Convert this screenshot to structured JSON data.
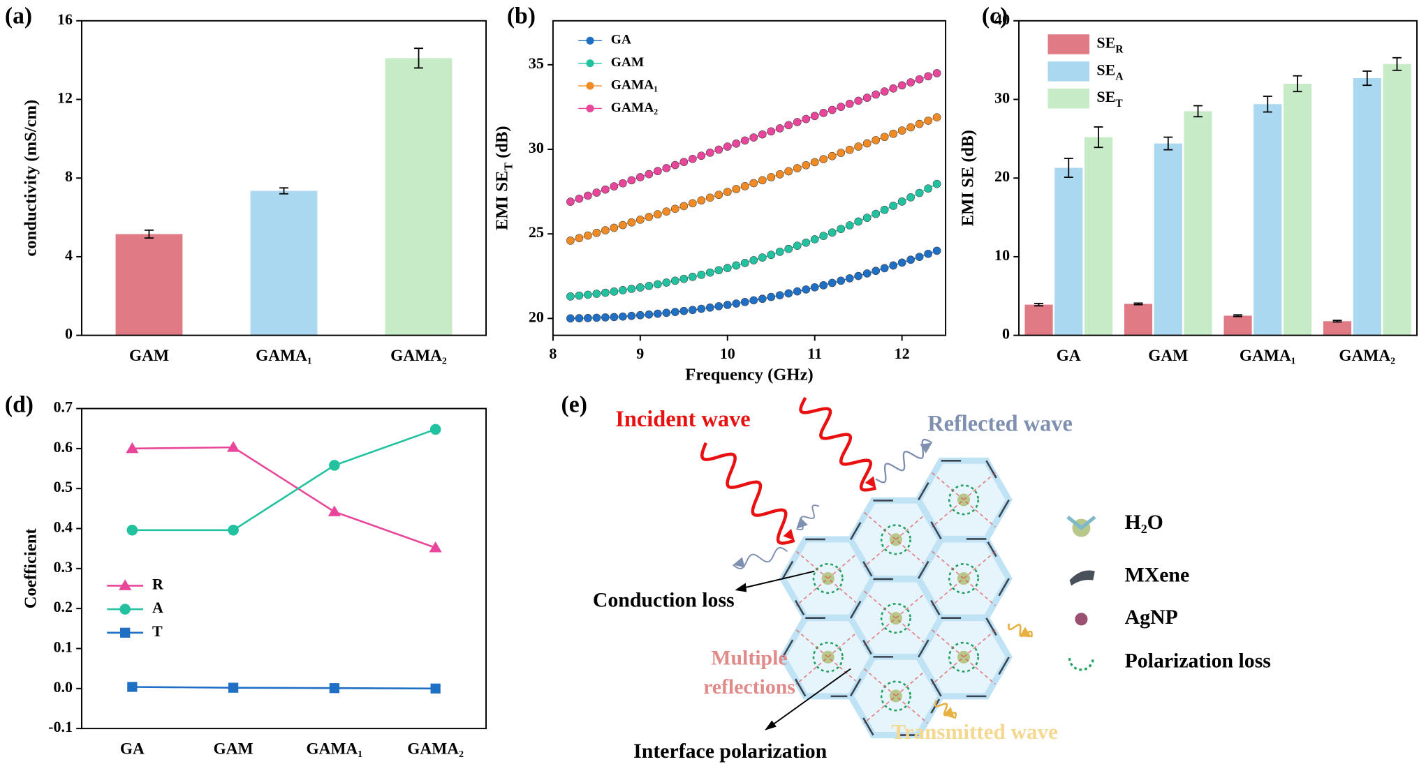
{
  "chart_data": [
    {
      "panel": "(a)",
      "type": "bar",
      "categories": [
        "GAM",
        "GAMA₁",
        "GAMA₂"
      ],
      "values": [
        5.15,
        7.35,
        14.1
      ],
      "errors": [
        0.2,
        0.15,
        0.5
      ],
      "colors": [
        "#e07b85",
        "#aad8f0",
        "#c6ebc6"
      ],
      "ylabel": "conductivity (mS/cm)",
      "ylim": [
        0,
        16
      ],
      "yticks": [
        0,
        4,
        8,
        12,
        16
      ]
    },
    {
      "panel": "(b)",
      "type": "scatter",
      "xlabel": "Frequency (GHz)",
      "ylabel": "EMI SET (dB)",
      "xlim": [
        8,
        12.5
      ],
      "ylim": [
        19,
        37.6
      ],
      "xticks": [
        8,
        9,
        10,
        11,
        12
      ],
      "yticks": [
        20,
        25,
        30,
        35
      ],
      "legend": "upper left",
      "x": [
        8.2,
        8.3,
        8.4,
        8.5,
        8.6,
        8.7,
        8.8,
        8.9,
        9.0,
        9.1,
        9.2,
        9.3,
        9.4,
        9.5,
        9.6,
        9.7,
        9.8,
        9.9,
        10.0,
        10.1,
        10.2,
        10.3,
        10.4,
        10.5,
        10.6,
        10.7,
        10.8,
        10.9,
        11.0,
        11.1,
        11.2,
        11.3,
        11.4,
        11.5,
        11.6,
        11.7,
        11.8,
        11.9,
        12.0,
        12.1,
        12.2,
        12.3,
        12.4
      ],
      "series": [
        {
          "name": "GA",
          "color": "#1f6fc4",
          "values": [
            20.0,
            20.01,
            20.02,
            20.04,
            20.06,
            20.08,
            20.11,
            20.15,
            20.19,
            20.23,
            20.28,
            20.33,
            20.38,
            20.44,
            20.5,
            20.57,
            20.64,
            20.72,
            20.8,
            20.88,
            20.97,
            21.07,
            21.16,
            21.27,
            21.37,
            21.48,
            21.6,
            21.71,
            21.84,
            21.96,
            22.1,
            22.23,
            22.37,
            22.51,
            22.66,
            22.81,
            22.97,
            23.13,
            23.3,
            23.47,
            23.64,
            23.82,
            24.0
          ]
        },
        {
          "name": "GAM",
          "color": "#22c2a0",
          "values": [
            21.3,
            21.35,
            21.4,
            21.46,
            21.52,
            21.59,
            21.67,
            21.75,
            21.83,
            21.92,
            22.02,
            22.12,
            22.23,
            22.34,
            22.46,
            22.58,
            22.71,
            22.85,
            22.98,
            23.13,
            23.28,
            23.44,
            23.6,
            23.76,
            23.94,
            24.11,
            24.3,
            24.48,
            24.68,
            24.88,
            25.08,
            25.29,
            25.5,
            25.73,
            25.95,
            26.18,
            26.42,
            26.66,
            26.91,
            27.16,
            27.42,
            27.68,
            27.95
          ]
        },
        {
          "name": "GAMA₁",
          "color": "#f08a24",
          "values": [
            24.6,
            24.75,
            24.9,
            25.06,
            25.21,
            25.36,
            25.52,
            25.68,
            25.84,
            26.0,
            26.16,
            26.32,
            26.48,
            26.64,
            26.81,
            26.98,
            27.14,
            27.31,
            27.48,
            27.65,
            27.82,
            28.0,
            28.17,
            28.35,
            28.52,
            28.7,
            28.88,
            29.06,
            29.24,
            29.42,
            29.6,
            29.79,
            29.97,
            30.16,
            30.35,
            30.54,
            30.73,
            30.92,
            31.11,
            31.3,
            31.5,
            31.69,
            31.89
          ]
        },
        {
          "name": "GAMA₂",
          "color": "#e8469a",
          "values": [
            26.9,
            27.08,
            27.26,
            27.44,
            27.62,
            27.81,
            27.99,
            28.17,
            28.35,
            28.53,
            28.71,
            28.89,
            29.07,
            29.25,
            29.43,
            29.62,
            29.8,
            29.98,
            30.16,
            30.34,
            30.52,
            30.7,
            30.88,
            31.06,
            31.24,
            31.43,
            31.61,
            31.79,
            31.97,
            32.15,
            32.33,
            32.51,
            32.69,
            32.87,
            33.05,
            33.24,
            33.42,
            33.6,
            33.78,
            33.96,
            34.14,
            34.32,
            34.5
          ]
        }
      ]
    },
    {
      "panel": "(c)",
      "type": "grouped_bar",
      "categories": [
        "GA",
        "GAM",
        "GAMA₁",
        "GAMA₂"
      ],
      "ylabel": "EMI SE (dB)",
      "ylim": [
        0,
        40
      ],
      "yticks": [
        0,
        10,
        20,
        30,
        40
      ],
      "legend": "upper left",
      "series": [
        {
          "name": "SER",
          "color": "#e07b85",
          "values": [
            3.9,
            4.0,
            2.5,
            1.8
          ],
          "errors": [
            0.15,
            0.1,
            0.1,
            0.1
          ]
        },
        {
          "name": "SEA",
          "color": "#aad8f0",
          "values": [
            21.3,
            24.4,
            29.4,
            32.7
          ],
          "errors": [
            1.2,
            0.8,
            1.0,
            0.9
          ]
        },
        {
          "name": "SET",
          "color": "#c6ebc6",
          "values": [
            25.2,
            28.5,
            32.0,
            34.5
          ],
          "errors": [
            1.3,
            0.7,
            1.0,
            0.8
          ]
        }
      ]
    },
    {
      "panel": "(d)",
      "type": "line",
      "categories": [
        "GA",
        "GAM",
        "GAMA₁",
        "GAMA₂"
      ],
      "ylabel": "Coefficient",
      "ylim": [
        -0.1,
        0.7
      ],
      "yticks": [
        -0.1,
        {
          "value": 0,
          "label": "0.0"
        },
        0.1,
        0.2,
        0.3,
        0.4,
        0.5,
        0.6,
        0.7
      ],
      "legend": "center left",
      "series": [
        {
          "name": "R",
          "color": "#e8469a",
          "marker": "triangle",
          "values": [
            0.6,
            0.603,
            0.442,
            0.352
          ]
        },
        {
          "name": "A",
          "color": "#22c2a0",
          "marker": "circle",
          "values": [
            0.396,
            0.396,
            0.558,
            0.648
          ]
        },
        {
          "name": "T",
          "color": "#1f6fc4",
          "marker": "square",
          "values": [
            0.004,
            0.002,
            0.001,
            0.0
          ]
        }
      ]
    }
  ],
  "diagram": {
    "panel": "(e)",
    "incident": "Incident wave",
    "reflected": "Reflected wave",
    "conduction": "Conduction loss",
    "multiple": [
      "Multiple",
      "reflections"
    ],
    "interface": "Interface polarization",
    "transmitted": "Transmitted wave",
    "legend": [
      "H₂O",
      "MXene",
      "AgNP",
      "Polarization loss"
    ]
  }
}
